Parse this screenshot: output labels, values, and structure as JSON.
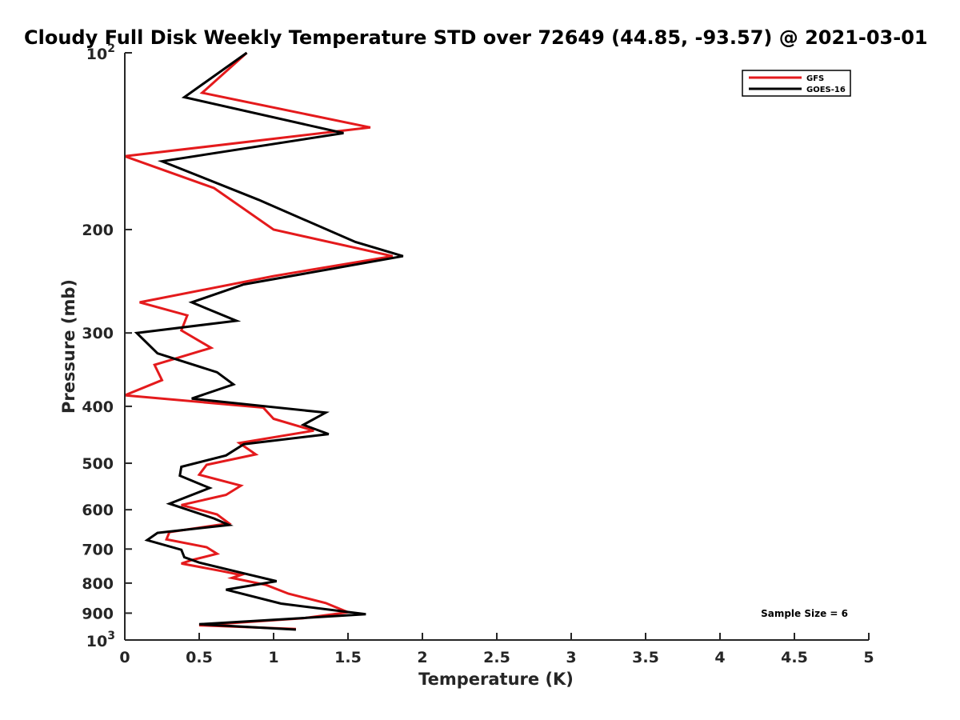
{
  "chart_data": {
    "type": "line",
    "title": "Cloudy Full Disk Weekly Temperature STD over 72649 (44.85, -93.57) @ 2021-03-01",
    "xlabel": "Temperature (K)",
    "ylabel": "Pressure (mb)",
    "xlim": [
      0,
      5
    ],
    "ylim": [
      100,
      1000
    ],
    "y_scale": "log",
    "y_reversed": true,
    "x_ticks": [
      "0",
      "0.5",
      "1",
      "1.5",
      "2",
      "2.5",
      "3",
      "3.5",
      "4",
      "4.5",
      "5"
    ],
    "y_ticks": [
      {
        "value": 100,
        "base": "10",
        "exp": "2"
      },
      {
        "value": 200,
        "label": "200"
      },
      {
        "value": 300,
        "label": "300"
      },
      {
        "value": 400,
        "label": "400"
      },
      {
        "value": 500,
        "label": "500"
      },
      {
        "value": 600,
        "label": "600"
      },
      {
        "value": 700,
        "label": "700"
      },
      {
        "value": 800,
        "label": "800"
      },
      {
        "value": 900,
        "label": "900"
      },
      {
        "value": 1000,
        "base": "10",
        "exp": "3"
      }
    ],
    "legend_position": "top-right",
    "annotation": "Sample Size = 6",
    "grid": false,
    "series": [
      {
        "name": "GFS",
        "color": "#e41a1c",
        "points": [
          [
            0.82,
            100
          ],
          [
            0.52,
            117
          ],
          [
            1.65,
            134
          ],
          [
            0.0,
            150
          ],
          [
            0.6,
            170
          ],
          [
            1.0,
            200
          ],
          [
            1.8,
            222
          ],
          [
            1.0,
            240
          ],
          [
            0.1,
            266
          ],
          [
            0.42,
            280
          ],
          [
            0.38,
            297
          ],
          [
            0.58,
            318
          ],
          [
            0.2,
            340
          ],
          [
            0.25,
            361
          ],
          [
            0.0,
            383
          ],
          [
            0.93,
            402
          ],
          [
            1.0,
            420
          ],
          [
            1.27,
            440
          ],
          [
            0.77,
            462
          ],
          [
            0.88,
            483
          ],
          [
            0.55,
            503
          ],
          [
            0.5,
            523
          ],
          [
            0.78,
            546
          ],
          [
            0.68,
            566
          ],
          [
            0.38,
            589
          ],
          [
            0.62,
            611
          ],
          [
            0.7,
            633
          ],
          [
            0.3,
            655
          ],
          [
            0.28,
            674
          ],
          [
            0.55,
            695
          ],
          [
            0.62,
            713
          ],
          [
            0.45,
            731
          ],
          [
            0.38,
            741
          ],
          [
            0.65,
            763
          ],
          [
            0.78,
            775
          ],
          [
            0.72,
            784
          ],
          [
            0.95,
            806
          ],
          [
            1.1,
            834
          ],
          [
            1.35,
            865
          ],
          [
            1.5,
            897
          ],
          [
            1.2,
            918
          ],
          [
            0.5,
            944
          ],
          [
            1.15,
            958
          ]
        ]
      },
      {
        "name": "GOES-16",
        "color": "#000000",
        "points": [
          [
            0.82,
            100
          ],
          [
            0.4,
            119
          ],
          [
            1.47,
            137
          ],
          [
            0.25,
            153
          ],
          [
            0.9,
            178
          ],
          [
            1.55,
            210
          ],
          [
            1.87,
            222
          ],
          [
            0.8,
            248
          ],
          [
            0.45,
            266
          ],
          [
            0.75,
            286
          ],
          [
            0.08,
            300
          ],
          [
            0.22,
            325
          ],
          [
            0.62,
            350
          ],
          [
            0.73,
            367
          ],
          [
            0.45,
            388
          ],
          [
            1.35,
            410
          ],
          [
            1.2,
            430
          ],
          [
            1.37,
            446
          ],
          [
            0.8,
            464
          ],
          [
            0.68,
            485
          ],
          [
            0.38,
            507
          ],
          [
            0.37,
            525
          ],
          [
            0.57,
            551
          ],
          [
            0.3,
            586
          ],
          [
            0.6,
            621
          ],
          [
            0.7,
            637
          ],
          [
            0.22,
            657
          ],
          [
            0.15,
            676
          ],
          [
            0.38,
            702
          ],
          [
            0.4,
            723
          ],
          [
            0.5,
            738
          ],
          [
            0.8,
            770
          ],
          [
            1.02,
            794
          ],
          [
            0.68,
            821
          ],
          [
            1.05,
            867
          ],
          [
            1.62,
            904
          ],
          [
            0.5,
            940
          ],
          [
            1.15,
            960
          ]
        ]
      }
    ]
  }
}
